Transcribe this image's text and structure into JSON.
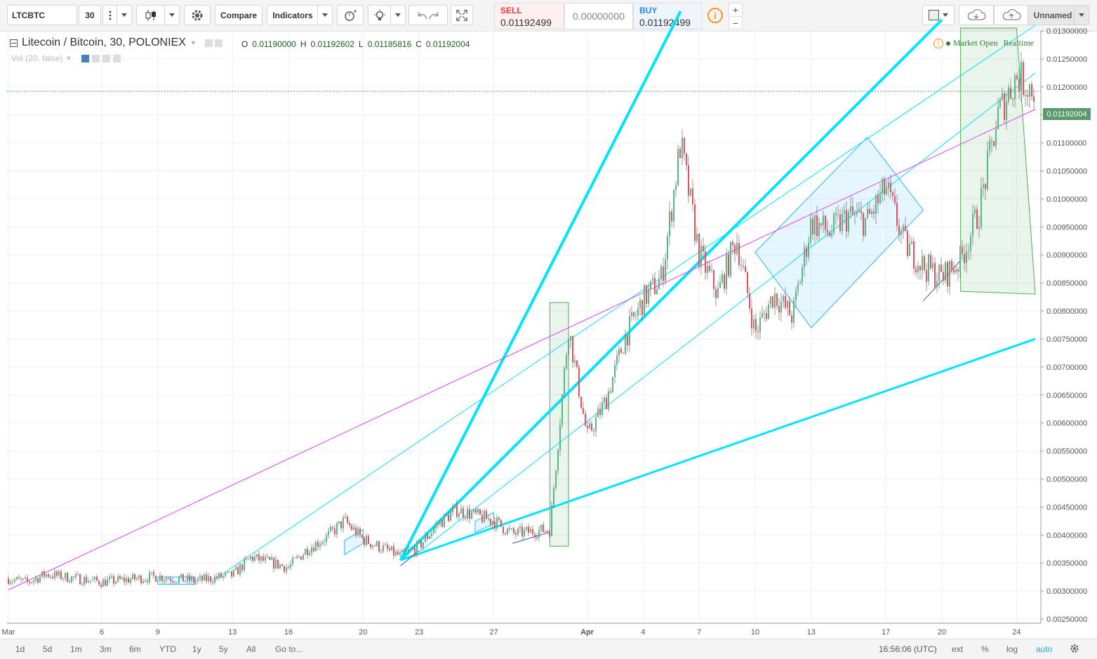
{
  "toolbar": {
    "symbol": "LTCBTC",
    "interval": "30",
    "compare_label": "Compare",
    "indicators_label": "Indicators",
    "sell_label": "SELL",
    "sell_price": "0.01192499",
    "spread": "0.00000000",
    "buy_label": "BUY",
    "buy_price": "0.01192499",
    "layout_name": "Unnamed",
    "plus": "+",
    "minus": "−"
  },
  "legend": {
    "title": "Litecoin / Bitcoin, 30, POLONIEX",
    "o_label": "O",
    "o_value": "0.01190000",
    "h_label": "H",
    "h_value": "0.01192602",
    "l_label": "L",
    "l_value": "0.01185816",
    "c_label": "C",
    "c_value": "0.01192004",
    "volume": "Vol (20, false)"
  },
  "status": {
    "market": "Market Open",
    "mode": "Realtime"
  },
  "last_price": "0.01192004",
  "bottom": {
    "ranges": [
      "1d",
      "5d",
      "1m",
      "3m",
      "6m",
      "YTD",
      "1y",
      "5y",
      "All"
    ],
    "goto": "Go to...",
    "time": "16:56:06 (UTC)",
    "ext": "ext",
    "percent": "%",
    "log": "log",
    "auto": "auto"
  },
  "colors": {
    "up": "#53b987",
    "down": "#eb4d5c",
    "cyan": "#00e5ff",
    "magenta": "#e040fb",
    "green_box": "#4caf50",
    "blue_box": "#29b6f6"
  },
  "chart_data": {
    "type": "candlestick",
    "x_ticks": [
      "Mar",
      "6",
      "9",
      "13",
      "16",
      "20",
      "23",
      "27",
      "Apr",
      "4",
      "7",
      "10",
      "13",
      "17",
      "20",
      "24"
    ],
    "y_ticks": [
      "0.01300000",
      "0.01250000",
      "0.01200000",
      "0.01150000",
      "0.01100000",
      "0.01050000",
      "0.01000000",
      "0.00950000",
      "0.00900000",
      "0.00850000",
      "0.00800000",
      "0.00750000",
      "0.00700000",
      "0.00650000",
      "0.00600000",
      "0.00550000",
      "0.00500000",
      "0.00450000",
      "0.00400000",
      "0.00350000",
      "0.00300000",
      "0.00250000"
    ],
    "ylim": [
      0.0025,
      0.0131
    ],
    "path": [
      [
        "2017-03-01",
        0.00322
      ],
      [
        "2017-03-02",
        0.00315
      ],
      [
        "2017-03-03",
        0.0033
      ],
      [
        "2017-03-06",
        0.00316
      ],
      [
        "2017-03-09",
        0.00326
      ],
      [
        "2017-03-11",
        0.00318
      ],
      [
        "2017-03-13",
        0.00328
      ],
      [
        "2017-03-14",
        0.0036
      ],
      [
        "2017-03-16",
        0.00342
      ],
      [
        "2017-03-17",
        0.00375
      ],
      [
        "2017-03-18",
        0.00395
      ],
      [
        "2017-03-19",
        0.00425
      ],
      [
        "2017-03-20",
        0.00392
      ],
      [
        "2017-03-22",
        0.00362
      ],
      [
        "2017-03-23",
        0.0038
      ],
      [
        "2017-03-24",
        0.0042
      ],
      [
        "2017-03-25",
        0.00445
      ],
      [
        "2017-03-27",
        0.00425
      ],
      [
        "2017-03-28",
        0.00402
      ],
      [
        "2017-03-30",
        0.0041
      ],
      [
        "2017-03-31",
        0.0077
      ],
      [
        "2017-04-01",
        0.00575
      ],
      [
        "2017-04-02",
        0.0064
      ],
      [
        "2017-04-03",
        0.0075
      ],
      [
        "2017-04-04",
        0.0082
      ],
      [
        "2017-04-05",
        0.0086
      ],
      [
        "2017-04-06",
        0.011
      ],
      [
        "2017-04-07",
        0.009
      ],
      [
        "2017-04-08",
        0.0083
      ],
      [
        "2017-04-09",
        0.0093
      ],
      [
        "2017-04-10",
        0.0076
      ],
      [
        "2017-04-11",
        0.0083
      ],
      [
        "2017-04-12",
        0.0079
      ],
      [
        "2017-04-13",
        0.0096
      ],
      [
        "2017-04-14",
        0.0094
      ],
      [
        "2017-04-15",
        0.0097
      ],
      [
        "2017-04-16",
        0.0096
      ],
      [
        "2017-04-17",
        0.0102
      ],
      [
        "2017-04-18",
        0.0092
      ],
      [
        "2017-04-19",
        0.0088
      ],
      [
        "2017-04-20",
        0.0086
      ],
      [
        "2017-04-21",
        0.0089
      ],
      [
        "2017-04-22",
        0.0098
      ],
      [
        "2017-04-23",
        0.0115
      ],
      [
        "2017-04-24",
        0.0122
      ],
      [
        "2017-04-25",
        0.01192
      ]
    ]
  }
}
